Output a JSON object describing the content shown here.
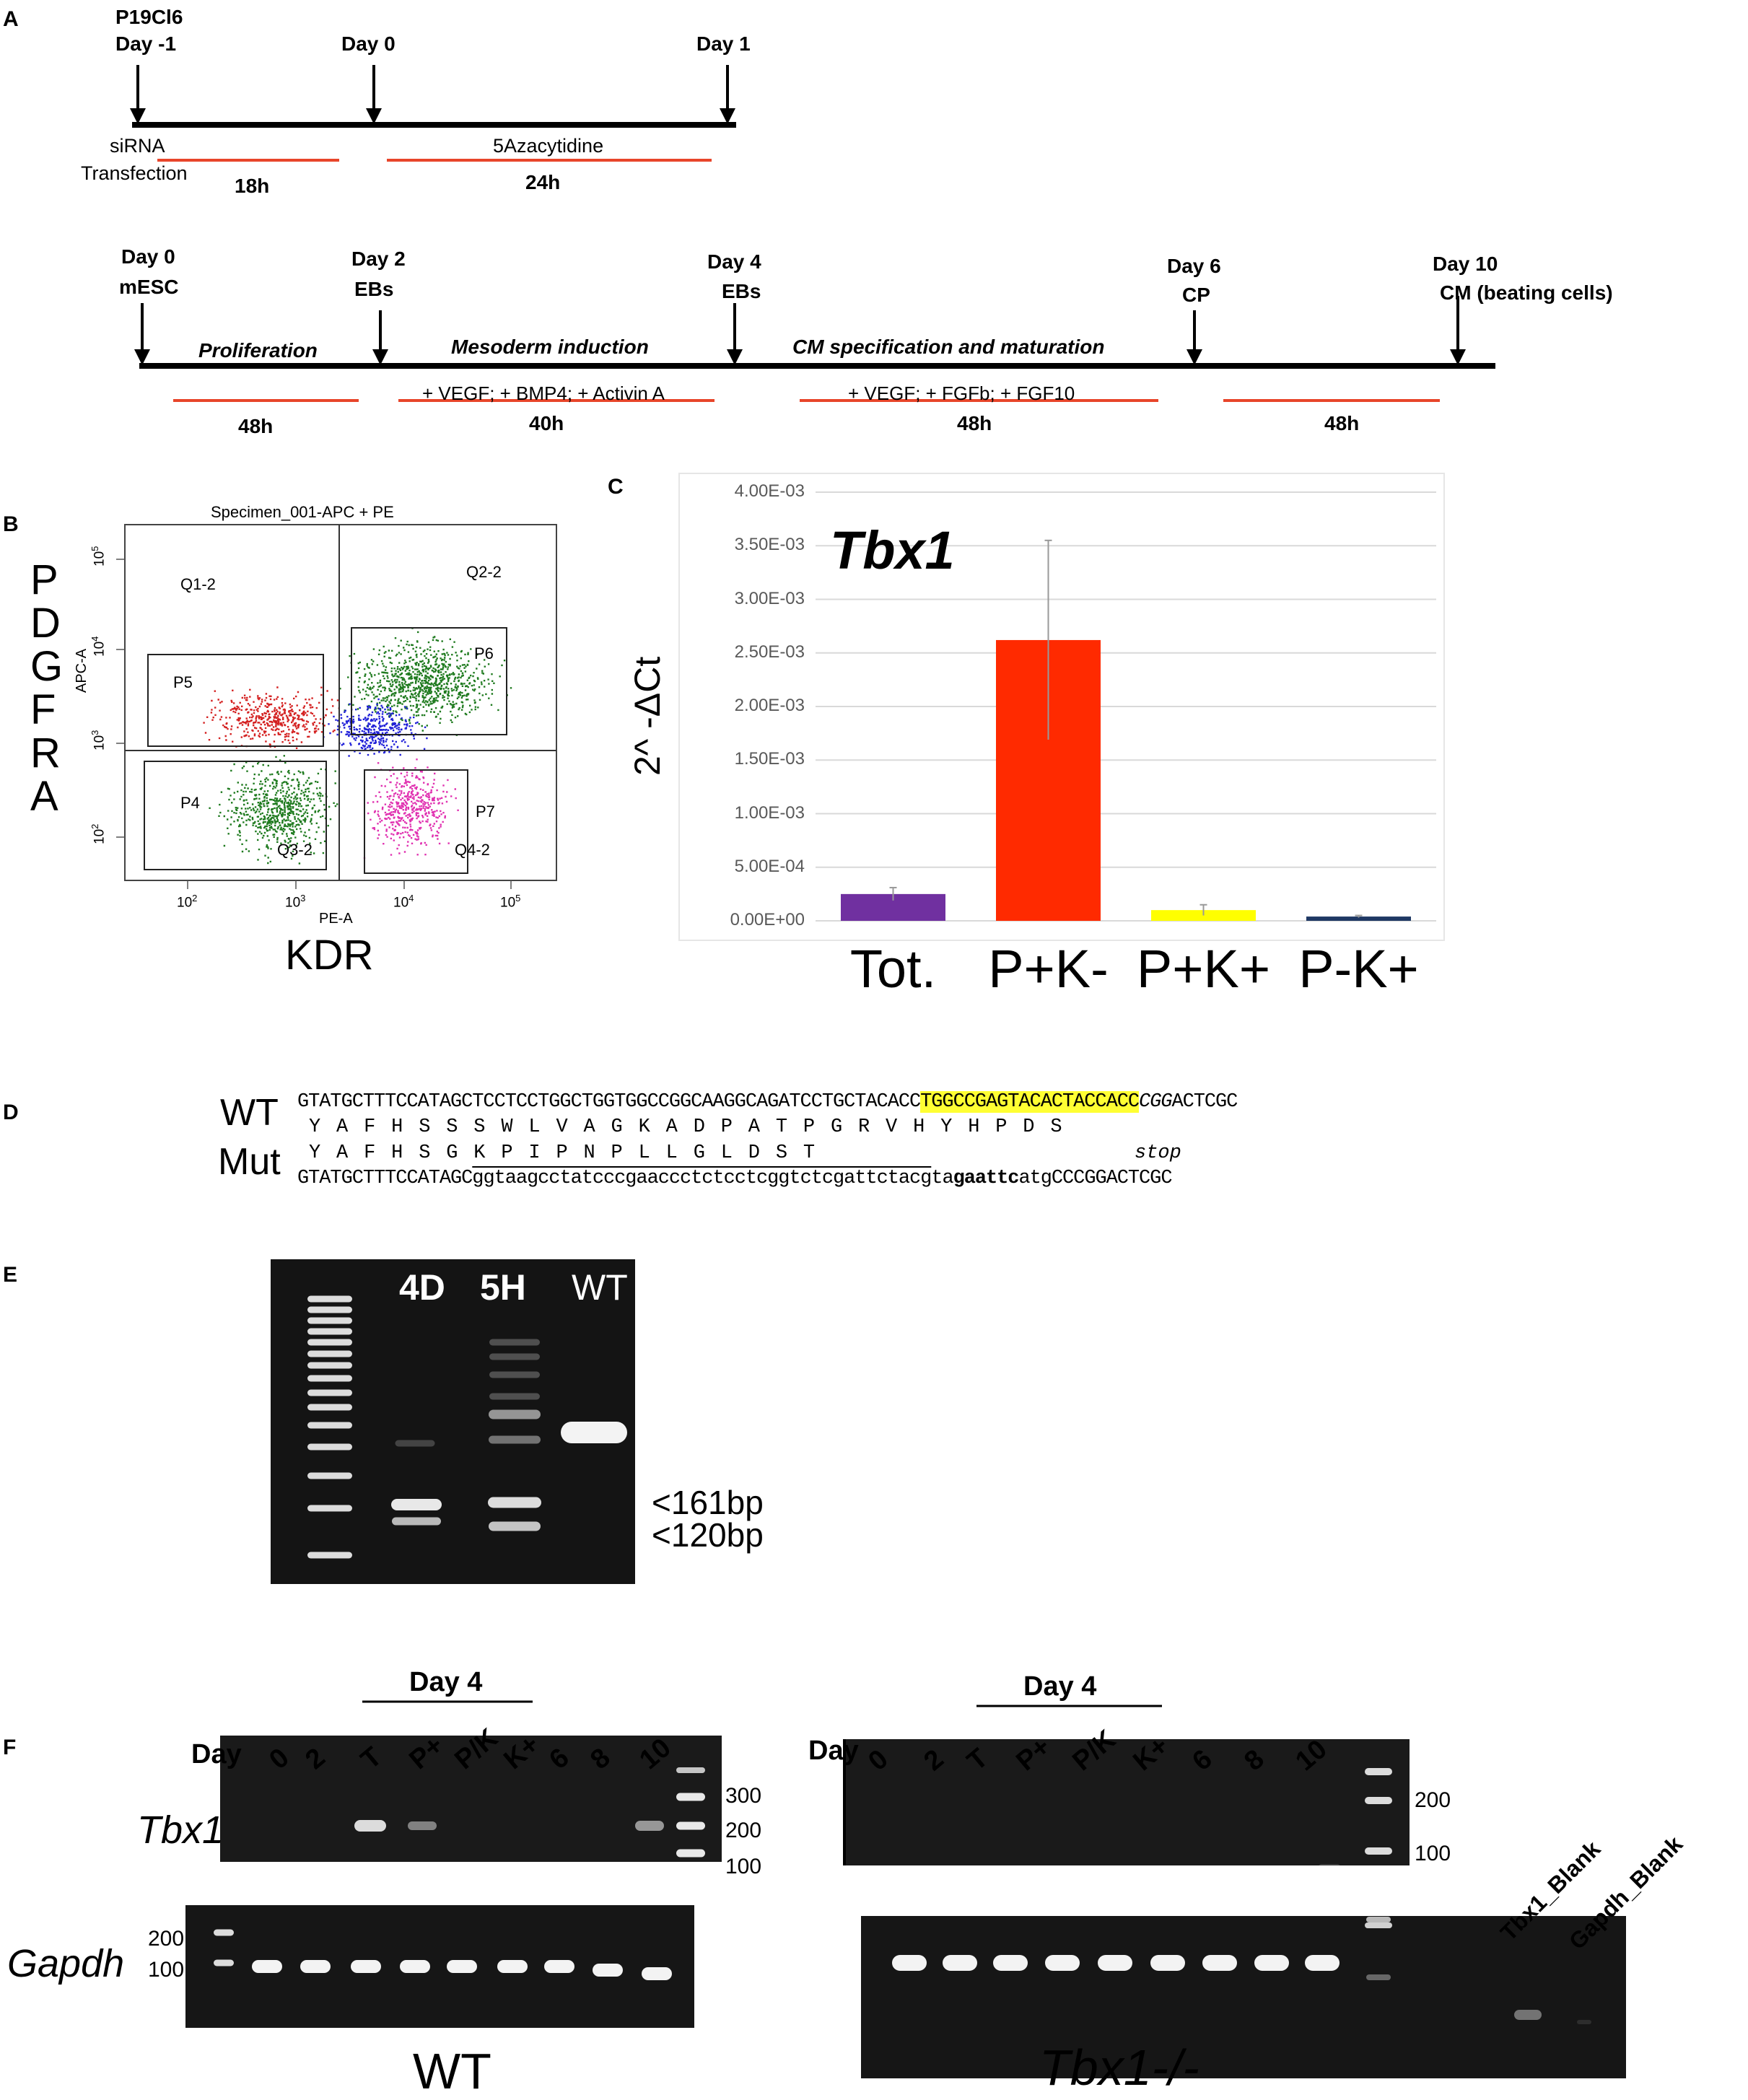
{
  "panelA": {
    "label": "A",
    "t1": {
      "cell_line": "P19Cl6",
      "day_m1": "Day -1",
      "day0": "Day 0",
      "day1": "Day 1",
      "sirna": "siRNA",
      "transfection": "Transfection",
      "aza": "5Azacytidine",
      "h18": "18h",
      "h24": "24h"
    },
    "t2": {
      "day0": "Day 0",
      "mesc": "mESC",
      "day2": "Day 2",
      "ebs2": "EBs",
      "day4": "Day 4",
      "ebs4": "EBs",
      "day6": "Day 6",
      "cp": "CP",
      "day10": "Day 10",
      "cm": "CM (beating cells)",
      "proliferation": "Proliferation",
      "mesoderm": "Mesoderm induction",
      "cmspec": "CM specification and maturation",
      "treat1": "+ VEGF; + BMP4; + Activin A",
      "treat2": "+ VEGF; + FGFb; + FGF10",
      "h48a": "48h",
      "h40": "40h",
      "h48b": "48h",
      "h48c": "48h"
    },
    "colors": {
      "timeline": "#000000",
      "duration": "#e8452a"
    }
  },
  "panelB": {
    "label": "B",
    "title": "Specimen_001-APC + PE",
    "yletters": [
      "P",
      "D",
      "G",
      "F",
      "R",
      "A"
    ],
    "xlabel": "KDR",
    "axis_x": "PE-A",
    "axis_y": "APC-A",
    "quadrants": [
      "Q1-2",
      "Q2-2",
      "Q3-2",
      "Q4-2"
    ],
    "gates": [
      "P4",
      "P5",
      "P6",
      "P7"
    ],
    "xticks": [
      "10",
      "10",
      "10",
      "10"
    ],
    "xexp": [
      "2",
      "3",
      "4",
      "5"
    ],
    "yticks": [
      "10",
      "10",
      "10",
      "10"
    ],
    "yexp": [
      "2",
      "3",
      "4",
      "5"
    ],
    "colors": {
      "red": "#d42020",
      "green": "#1e7a1e",
      "blue": "#2020d8",
      "magenta": "#e030b0"
    }
  },
  "panelC": {
    "label": "C",
    "chart_data": {
      "type": "bar",
      "title": "Tbx1",
      "ylabel": "2^ -ΔCt",
      "categories": [
        "Tot.",
        "P+K-",
        "P+K+",
        "P-K+"
      ],
      "values": [
        0.00025,
        0.00262,
        0.0001,
        4e-05
      ],
      "errors": [
        6e-05,
        0.00093,
        5e-05,
        1e-05
      ],
      "colors": [
        "#7030a0",
        "#ff2a00",
        "#ffff00",
        "#1f3864"
      ],
      "ylim": [
        0,
        0.004
      ],
      "yticks": [
        "0.00E+00",
        "5.00E-04",
        "1.00E-03",
        "1.50E-03",
        "2.00E-03",
        "2.50E-03",
        "3.00E-03",
        "3.50E-03",
        "4.00E-03"
      ],
      "grid": true
    }
  },
  "panelD": {
    "label": "D",
    "wt_label": "WT",
    "mut_label": "Mut",
    "wt_seq_a": "GTATGCTTTCCATAGCTCCTCCTGGCTGGTGGCCGGCAAGGCAGATCCTGCTACACC",
    "wt_seq_hl": "TGGCCGAGTACACTACCACC",
    "wt_seq_it": "CGG",
    "wt_seq_end": "ACTCGC",
    "wt_aa": [
      "Y",
      "A",
      "F",
      "H",
      "S",
      "S",
      "S",
      "W",
      "L",
      "V",
      "A",
      "G",
      "K",
      "A",
      "D",
      "P",
      "A",
      "T",
      "P",
      "G",
      "R",
      "V",
      "H",
      "Y",
      "H",
      "P",
      "D",
      "S"
    ],
    "mut_aa": [
      "Y",
      "A",
      "F",
      "H",
      "S",
      "G",
      "K",
      "P",
      "I",
      "P",
      "N",
      "P",
      "L",
      "L",
      "G",
      "L",
      "D",
      "S",
      "T"
    ],
    "stop": "stop",
    "mut_seq_a": "GTATGCTTTCCATAGC",
    "mut_seq_ins": "ggtaagcctatcccgaaccctctcctcggtctcgattctacg",
    "mut_seq_ta": "ta",
    "mut_seq_bold": "gaattc",
    "mut_seq_atg": "atg",
    "mut_seq_end": "CCCGGACTCGC",
    "highlight": "#ffff33"
  },
  "panelE": {
    "label": "E",
    "lanes": [
      "4D",
      "5H",
      "WT"
    ],
    "band1": "<161bp",
    "band2": "<120bp"
  },
  "panelF": {
    "label": "F",
    "wt": {
      "day_label": "Day",
      "day4": "Day 4",
      "lanes": [
        "0",
        "2",
        "T",
        "P+",
        "P/K",
        "K+",
        "6",
        "8",
        "10"
      ],
      "gene1": "Tbx1",
      "gene2": "Gapdh",
      "ladder_top": [
        "300",
        "200",
        "100"
      ],
      "ladder_bottom": [
        "200",
        "100"
      ],
      "caption": "WT"
    },
    "ko": {
      "day_label": "Day",
      "day4": "Day 4",
      "lanes": [
        "0",
        "2",
        "T",
        "P+",
        "P/K",
        "K+",
        "6",
        "8",
        "10"
      ],
      "ladder": [
        "200",
        "100"
      ],
      "blanks": [
        "Tbx1_Blank",
        "Gapdh_Blank"
      ],
      "caption": "Tbx1-/-"
    }
  }
}
